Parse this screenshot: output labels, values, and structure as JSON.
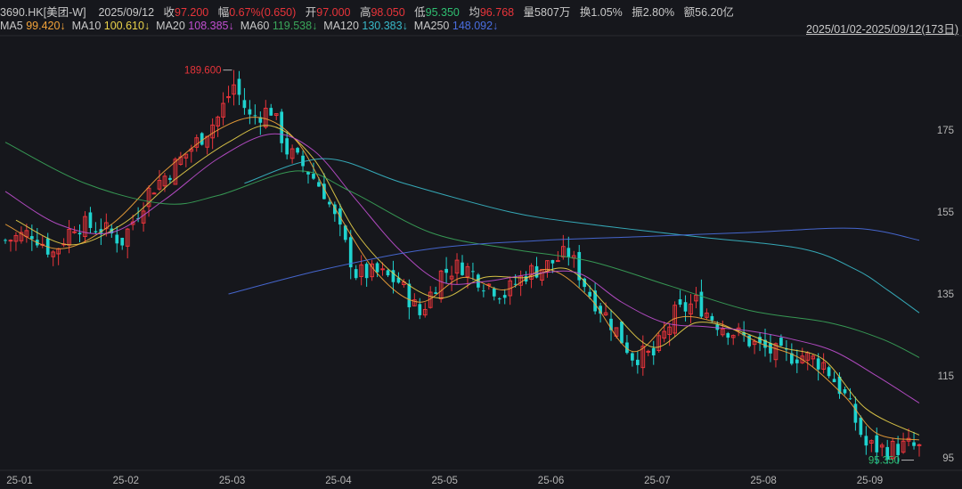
{
  "header": {
    "symbol": "3690.HK[美团-W]",
    "date": "2025/09/12",
    "close_label": "收",
    "close": "97.200",
    "change_label": "幅",
    "change": "0.67%(0.650)",
    "open_label": "开",
    "open": "97.000",
    "high_label": "高",
    "high": "98.050",
    "low_label": "低",
    "low": "95.350",
    "avg_label": "均",
    "avg": "96.768",
    "volume": "量5807万",
    "turnover": "换1.05%",
    "amplitude": "振2.80%",
    "amount": "额56.20亿"
  },
  "ma": [
    {
      "label": "MA5",
      "value": "99.420↓",
      "color": "#f2a33a"
    },
    {
      "label": "MA10",
      "value": "100.610↓",
      "color": "#e9d24a"
    },
    {
      "label": "MA20",
      "value": "108.385↓",
      "color": "#c04fd0"
    },
    {
      "label": "MA60",
      "value": "119.538↓",
      "color": "#3aa55a"
    },
    {
      "label": "MA120",
      "value": "130.383↓",
      "color": "#38b8c8"
    },
    {
      "label": "MA250",
      "value": "148.092↓",
      "color": "#4a6ee0"
    }
  ],
  "range_text": "2025/01/02-2025/09/12(173日)",
  "colors": {
    "up": "#e8343a",
    "down": "#1fd3cf",
    "bg": "#16171c",
    "grid": "#2a2b31"
  },
  "chart_data": {
    "type": "candlestick",
    "y_ticks": [
      175,
      155,
      135,
      115,
      95
    ],
    "ylim": [
      92,
      198
    ],
    "x_ticks": [
      "25-01",
      "25-02",
      "25-03",
      "25-04",
      "25-05",
      "25-06",
      "25-07",
      "25-08",
      "25-09"
    ],
    "x_tick_index": [
      0,
      20,
      40,
      60,
      80,
      100,
      120,
      140,
      160
    ],
    "n_days": 173,
    "max_label": "189.600",
    "min_label": "95.350",
    "candles": [],
    "anchors": [
      [
        0,
        148
      ],
      [
        5,
        150
      ],
      [
        9,
        145
      ],
      [
        13,
        152
      ],
      [
        18,
        151
      ],
      [
        22,
        148
      ],
      [
        27,
        160
      ],
      [
        31,
        165
      ],
      [
        36,
        172
      ],
      [
        40,
        178
      ],
      [
        43,
        186
      ],
      [
        46,
        178
      ],
      [
        50,
        180
      ],
      [
        53,
        170
      ],
      [
        57,
        165
      ],
      [
        60,
        160
      ],
      [
        63,
        150
      ],
      [
        66,
        140
      ],
      [
        70,
        140
      ],
      [
        74,
        138
      ],
      [
        78,
        130
      ],
      [
        82,
        140
      ],
      [
        86,
        142
      ],
      [
        90,
        138
      ],
      [
        94,
        135
      ],
      [
        98,
        140
      ],
      [
        102,
        142
      ],
      [
        106,
        145
      ],
      [
        110,
        135
      ],
      [
        114,
        128
      ],
      [
        118,
        120
      ],
      [
        122,
        120
      ],
      [
        126,
        130
      ],
      [
        130,
        133
      ],
      [
        134,
        128
      ],
      [
        138,
        125
      ],
      [
        142,
        122
      ],
      [
        146,
        120
      ],
      [
        150,
        120
      ],
      [
        154,
        118
      ],
      [
        158,
        110
      ],
      [
        162,
        98
      ],
      [
        166,
        97
      ],
      [
        170,
        98
      ],
      [
        172,
        97.2
      ]
    ],
    "ma_series": [
      {
        "name": "MA5",
        "color": "#f2a33a",
        "pts": [
          [
            0,
            152
          ],
          [
            10,
            146
          ],
          [
            20,
            152
          ],
          [
            30,
            165
          ],
          [
            40,
            175
          ],
          [
            48,
            178
          ],
          [
            55,
            172
          ],
          [
            62,
            156
          ],
          [
            70,
            140
          ],
          [
            78,
            133
          ],
          [
            86,
            139
          ],
          [
            94,
            136
          ],
          [
            102,
            141
          ],
          [
            110,
            134
          ],
          [
            118,
            121
          ],
          [
            126,
            129
          ],
          [
            134,
            128
          ],
          [
            142,
            123
          ],
          [
            150,
            119
          ],
          [
            158,
            110
          ],
          [
            164,
            101
          ],
          [
            172,
            99.4
          ]
        ]
      },
      {
        "name": "MA10",
        "color": "#e9d24a",
        "pts": [
          [
            2,
            153
          ],
          [
            12,
            147
          ],
          [
            22,
            152
          ],
          [
            32,
            163
          ],
          [
            42,
            172
          ],
          [
            50,
            176
          ],
          [
            58,
            168
          ],
          [
            66,
            150
          ],
          [
            74,
            139
          ],
          [
            82,
            134
          ],
          [
            90,
            139
          ],
          [
            98,
            139
          ],
          [
            106,
            141
          ],
          [
            114,
            131
          ],
          [
            122,
            122
          ],
          [
            130,
            128
          ],
          [
            138,
            126
          ],
          [
            146,
            122
          ],
          [
            154,
            119
          ],
          [
            162,
            107
          ],
          [
            172,
            100.6
          ]
        ]
      },
      {
        "name": "MA20",
        "color": "#c04fd0",
        "pts": [
          [
            0,
            160
          ],
          [
            10,
            152
          ],
          [
            20,
            150
          ],
          [
            30,
            158
          ],
          [
            40,
            168
          ],
          [
            50,
            174
          ],
          [
            58,
            170
          ],
          [
            66,
            158
          ],
          [
            74,
            146
          ],
          [
            82,
            138
          ],
          [
            90,
            138
          ],
          [
            100,
            140
          ],
          [
            108,
            140
          ],
          [
            116,
            133
          ],
          [
            124,
            128
          ],
          [
            132,
            127
          ],
          [
            140,
            126
          ],
          [
            148,
            124
          ],
          [
            156,
            121
          ],
          [
            164,
            115
          ],
          [
            172,
            108.4
          ]
        ]
      },
      {
        "name": "MA60",
        "color": "#3aa55a",
        "pts": [
          [
            0,
            172
          ],
          [
            15,
            162
          ],
          [
            30,
            157
          ],
          [
            40,
            159
          ],
          [
            55,
            165
          ],
          [
            65,
            160
          ],
          [
            80,
            150
          ],
          [
            95,
            146
          ],
          [
            110,
            143
          ],
          [
            125,
            137
          ],
          [
            140,
            131
          ],
          [
            155,
            128
          ],
          [
            165,
            124
          ],
          [
            172,
            119.5
          ]
        ]
      },
      {
        "name": "MA120",
        "color": "#38b8c8",
        "pts": [
          [
            45,
            162
          ],
          [
            60,
            168
          ],
          [
            75,
            162
          ],
          [
            95,
            155
          ],
          [
            110,
            152
          ],
          [
            130,
            149
          ],
          [
            150,
            146
          ],
          [
            160,
            141
          ],
          [
            166,
            136
          ],
          [
            172,
            130.4
          ]
        ]
      },
      {
        "name": "MA250",
        "color": "#4a6ee0",
        "pts": [
          [
            42,
            135
          ],
          [
            60,
            141
          ],
          [
            80,
            146
          ],
          [
            100,
            148
          ],
          [
            120,
            149
          ],
          [
            140,
            150
          ],
          [
            160,
            151
          ],
          [
            172,
            148.1
          ]
        ]
      }
    ]
  }
}
